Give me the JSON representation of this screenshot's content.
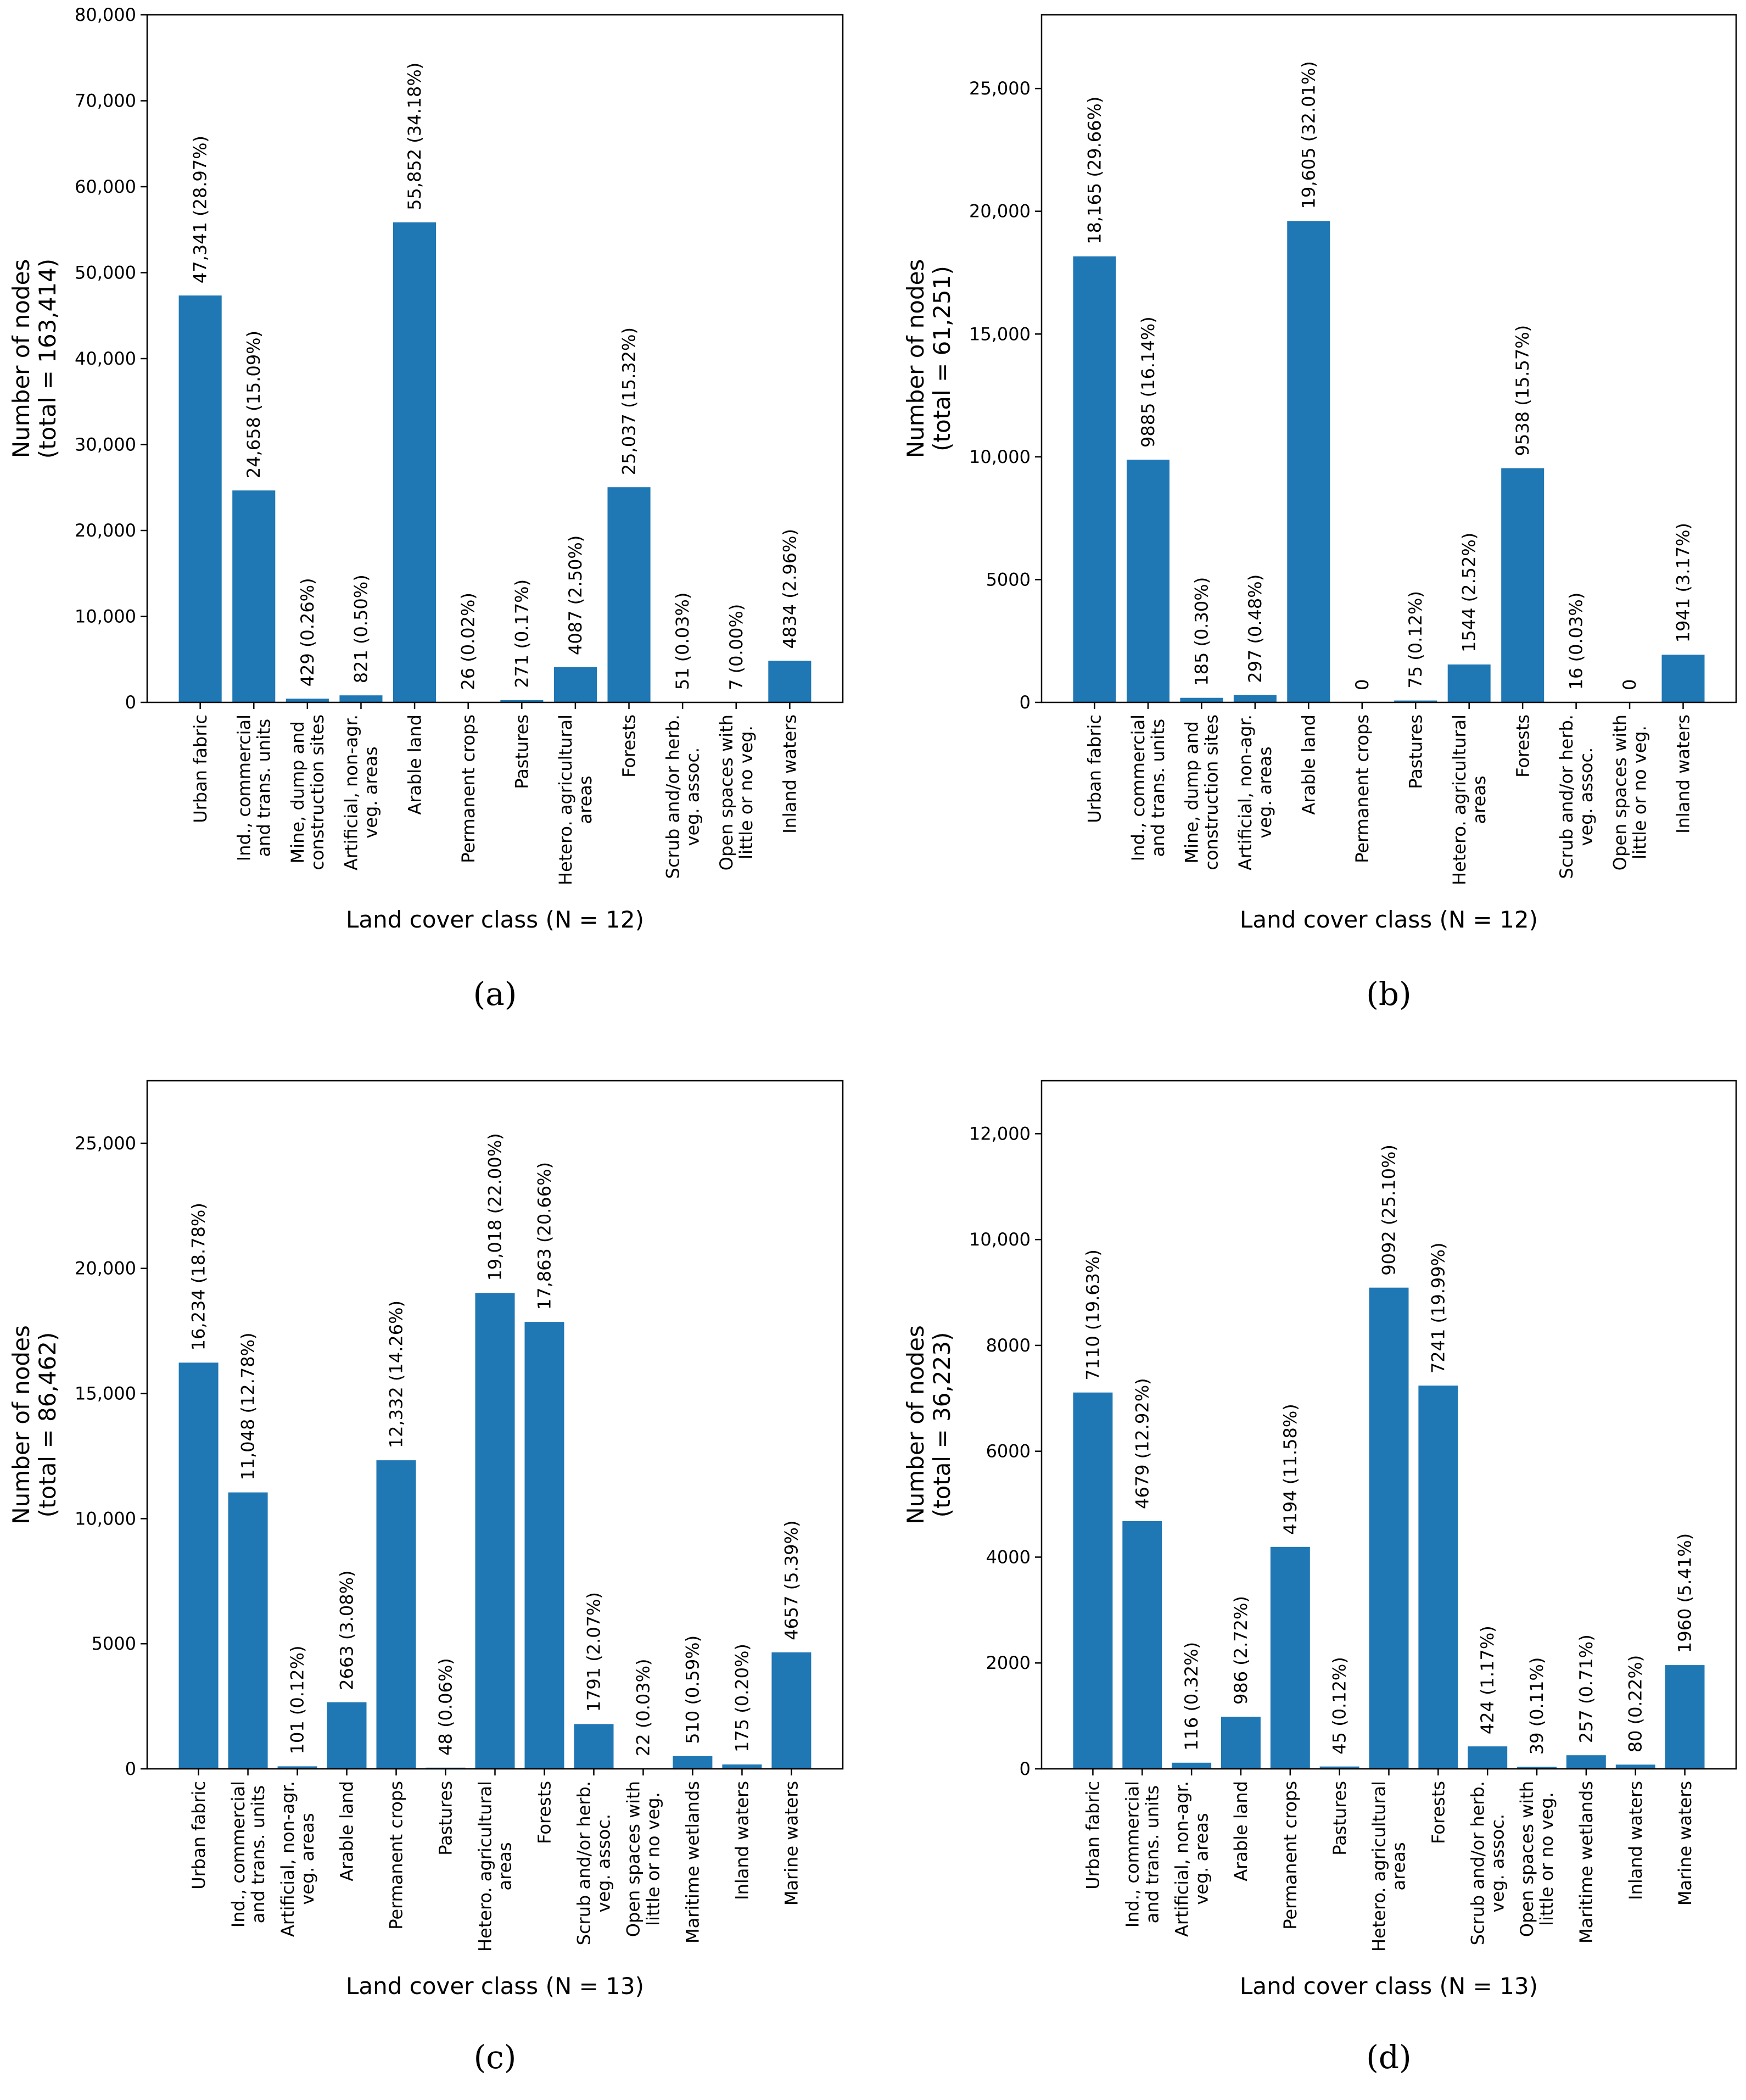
{
  "figure": {
    "colors": {
      "bar": "#1f77b4",
      "axis": "#000000",
      "background": "#ffffff"
    }
  },
  "chart_data": [
    {
      "type": "bar",
      "panel_label": "(a)",
      "ylabel": [
        "Number of nodes",
        "(total = 163,414)"
      ],
      "xlabel": "Land cover class (N = 12)",
      "ylim": [
        0,
        80000
      ],
      "yticks": [
        0,
        10000,
        20000,
        30000,
        40000,
        50000,
        60000,
        70000,
        80000
      ],
      "ytick_labels": [
        "0",
        "10,000",
        "20,000",
        "30,000",
        "40,000",
        "50,000",
        "60,000",
        "70,000",
        "80,000"
      ],
      "categories": [
        [
          "Urban fabric"
        ],
        [
          "Ind., commercial",
          "and trans. units"
        ],
        [
          "Mine, dump and",
          "construction sites"
        ],
        [
          "Artificial, non-agr.",
          "veg. areas"
        ],
        [
          "Arable land"
        ],
        [
          "Permanent crops"
        ],
        [
          "Pastures"
        ],
        [
          "Hetero. agricultural",
          "areas"
        ],
        [
          "Forests"
        ],
        [
          "Scrub and/or herb.",
          "veg. assoc."
        ],
        [
          "Open spaces with",
          "little or no veg."
        ],
        [
          "Inland waters"
        ]
      ],
      "values": [
        47341,
        24658,
        429,
        821,
        55852,
        26,
        271,
        4087,
        25037,
        51,
        7,
        4834
      ],
      "data_labels": [
        "47,341 (28.97%)",
        "24,658 (15.09%)",
        "429    (0.26%)",
        "821    (0.50%)",
        "55,852 (34.18%)",
        "26    (0.02%)",
        "271    (0.17%)",
        "4087    (2.50%)",
        "25,037 (15.32%)",
        "51    (0.03%)",
        "7    (0.00%)",
        "4834    (2.96%)"
      ],
      "grid": false,
      "legend": "none"
    },
    {
      "type": "bar",
      "panel_label": "(b)",
      "ylabel": [
        "Number of nodes",
        "(total = 61,251)"
      ],
      "xlabel": "Land cover class (N = 12)",
      "ylim": [
        0,
        28000
      ],
      "yticks": [
        0,
        5000,
        10000,
        15000,
        20000,
        25000
      ],
      "ytick_labels": [
        "0",
        "5000",
        "10,000",
        "15,000",
        "20,000",
        "25,000"
      ],
      "categories": [
        [
          "Urban fabric"
        ],
        [
          "Ind., commercial",
          "and trans. units"
        ],
        [
          "Mine, dump and",
          "construction sites"
        ],
        [
          "Artificial, non-agr.",
          "veg. areas"
        ],
        [
          "Arable land"
        ],
        [
          "Permanent crops"
        ],
        [
          "Pastures"
        ],
        [
          "Hetero. agricultural",
          "areas"
        ],
        [
          "Forests"
        ],
        [
          "Scrub and/or herb.",
          "veg. assoc."
        ],
        [
          "Open spaces with",
          "little or no veg."
        ],
        [
          "Inland waters"
        ]
      ],
      "values": [
        18165,
        9885,
        185,
        297,
        19605,
        0,
        75,
        1544,
        9538,
        16,
        0,
        1941
      ],
      "data_labels": [
        "18,165 (29.66%)",
        "9885    (16.14%)",
        "185    (0.30%)",
        "297    (0.48%)",
        "19,605 (32.01%)",
        "0",
        "75    (0.12%)",
        "1544    (2.52%)",
        "9538    (15.57%)",
        "16    (0.03%)",
        "0",
        "1941    (3.17%)"
      ],
      "grid": false,
      "legend": "none"
    },
    {
      "type": "bar",
      "panel_label": "(c)",
      "ylabel": [
        "Number of nodes",
        "(total = 86,462)"
      ],
      "xlabel": "Land cover class (N = 13)",
      "ylim": [
        0,
        27500
      ],
      "yticks": [
        0,
        5000,
        10000,
        15000,
        20000,
        25000
      ],
      "ytick_labels": [
        "0",
        "5000",
        "10,000",
        "15,000",
        "20,000",
        "25,000"
      ],
      "categories": [
        [
          "Urban fabric"
        ],
        [
          "Ind., commercial",
          "and trans. units"
        ],
        [
          "Artificial, non-agr.",
          "veg. areas"
        ],
        [
          "Arable land"
        ],
        [
          "Permanent crops"
        ],
        [
          "Pastures"
        ],
        [
          "Hetero. agricultural",
          "areas"
        ],
        [
          "Forests"
        ],
        [
          "Scrub and/or herb.",
          "veg. assoc."
        ],
        [
          "Open spaces with",
          "little or no veg."
        ],
        [
          "Maritime wetlands"
        ],
        [
          "Inland waters"
        ],
        [
          "Marine waters"
        ]
      ],
      "values": [
        16234,
        11048,
        101,
        2663,
        12332,
        48,
        19018,
        17863,
        1791,
        22,
        510,
        175,
        4657
      ],
      "data_labels": [
        "16,234 (18.78%)",
        "11,048 (12.78%)",
        "101    (0.12%)",
        "2663    (3.08%)",
        "12,332 (14.26%)",
        "48    (0.06%)",
        "19,018 (22.00%)",
        "17,863 (20.66%)",
        "1791    (2.07%)",
        "22    (0.03%)",
        "510    (0.59%)",
        "175    (0.20%)",
        "4657    (5.39%)"
      ],
      "grid": false,
      "legend": "none"
    },
    {
      "type": "bar",
      "panel_label": "(d)",
      "ylabel": [
        "Number of nodes",
        "(total = 36,223)"
      ],
      "xlabel": "Land cover class (N = 13)",
      "ylim": [
        0,
        13000
      ],
      "yticks": [
        0,
        2000,
        4000,
        6000,
        8000,
        10000,
        12000
      ],
      "ytick_labels": [
        "0",
        "2000",
        "4000",
        "6000",
        "8000",
        "10,000",
        "12,000"
      ],
      "categories": [
        [
          "Urban fabric"
        ],
        [
          "Ind., commercial",
          "and trans. units"
        ],
        [
          "Artificial, non-agr.",
          "veg. areas"
        ],
        [
          "Arable land"
        ],
        [
          "Permanent crops"
        ],
        [
          "Pastures"
        ],
        [
          "Hetero. agricultural",
          "areas"
        ],
        [
          "Forests"
        ],
        [
          "Scrub and/or herb.",
          "veg. assoc."
        ],
        [
          "Open spaces with",
          "little or no veg."
        ],
        [
          "Maritime wetlands"
        ],
        [
          "Inland waters"
        ],
        [
          "Marine waters"
        ]
      ],
      "values": [
        7110,
        4679,
        116,
        986,
        4194,
        45,
        9092,
        7241,
        424,
        39,
        257,
        80,
        1960
      ],
      "data_labels": [
        "7110    (19.63%)",
        "4679    (12.92%)",
        "116    (0.32%)",
        "986    (2.72%)",
        "4194    (11.58%)",
        "45    (0.12%)",
        "9092    (25.10%)",
        "7241    (19.99%)",
        "424    (1.17%)",
        "39    (0.11%)",
        "257    (0.71%)",
        "80    (0.22%)",
        "1960    (5.41%)"
      ],
      "grid": false,
      "legend": "none"
    }
  ]
}
